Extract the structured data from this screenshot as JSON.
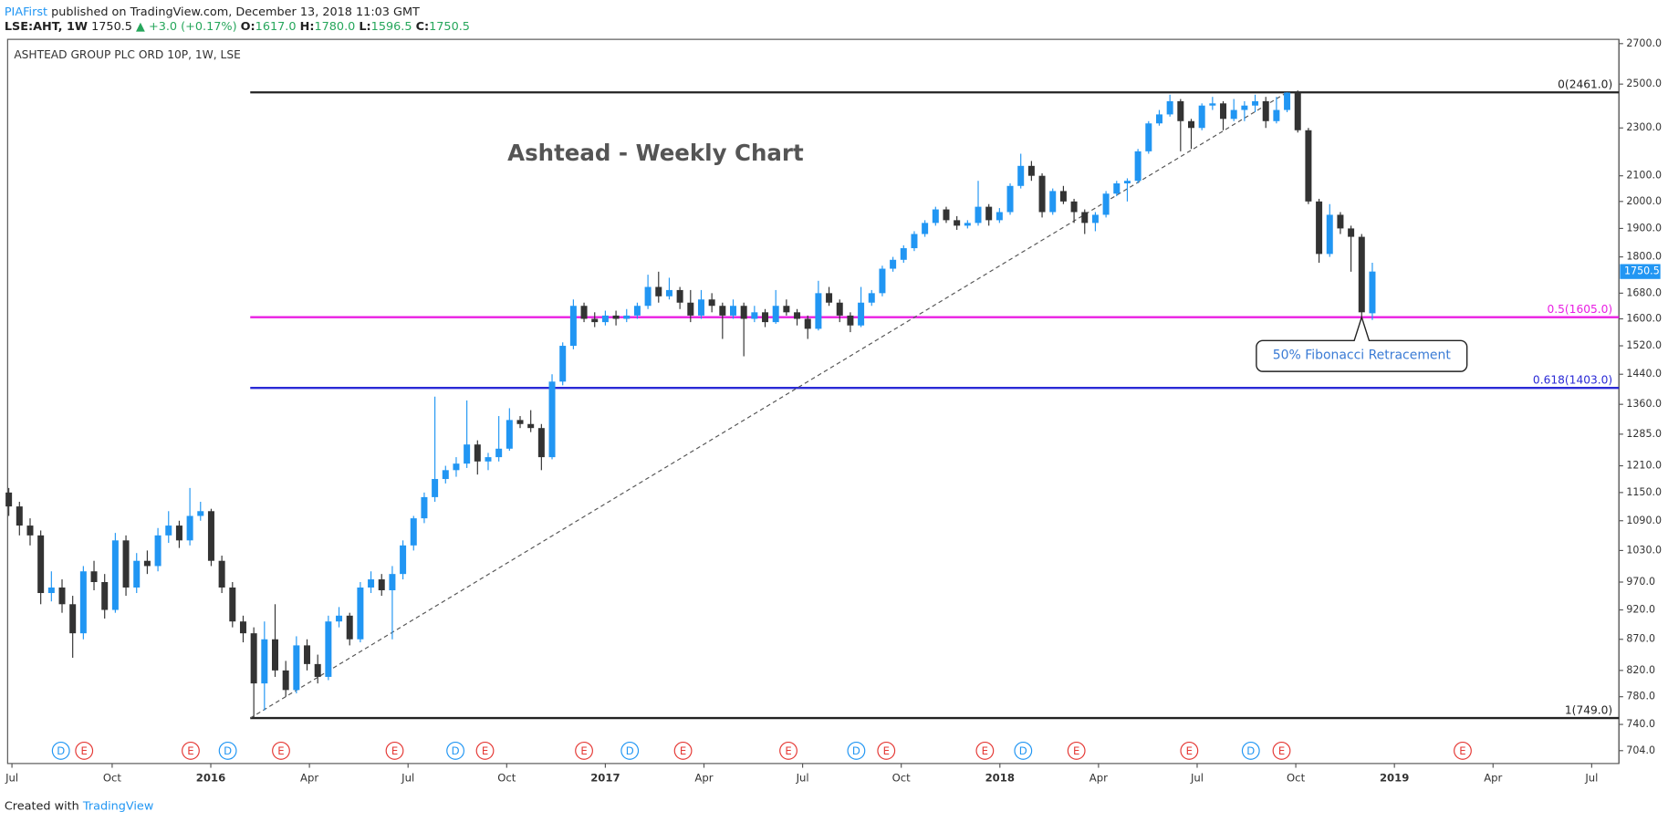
{
  "header": {
    "author": "PIAFirst",
    "text": "published on TradingView.com, December 13, 2018 11:03 GMT"
  },
  "quote": {
    "symbol": "LSE:AHT, 1W",
    "last": "1750.5",
    "change": "▲ +3.0 (+0.17%)",
    "open_label": "O:",
    "open": "1617.0",
    "high_label": "H:",
    "high": "1780.0",
    "low_label": "L:",
    "low": "1596.5",
    "close_label": "C:",
    "close": "1750.5"
  },
  "footer": {
    "text": "Created with",
    "brand": "TradingView"
  },
  "chart_data": {
    "type": "candlestick",
    "instrument": "ASHTEAD GROUP PLC ORD 10P, 1W, LSE",
    "title": "Ashtead - Weekly Chart",
    "log_scale": true,
    "up_color": "#2196f3",
    "down_color": "#333333",
    "xlim": [
      2015.485,
      2019.569
    ],
    "ylim": [
      687,
      2722
    ],
    "xticks": [
      {
        "value": 2015.496,
        "label": "Jul"
      },
      {
        "value": 2015.75,
        "label": "Oct"
      },
      2016,
      {
        "value": 2016.25,
        "label": "Apr"
      },
      {
        "value": 2016.5,
        "label": "Jul"
      },
      {
        "value": 2016.75,
        "label": "Oct"
      },
      2017,
      {
        "value": 2017.25,
        "label": "Apr"
      },
      {
        "value": 2017.5,
        "label": "Jul"
      },
      {
        "value": 2017.75,
        "label": "Oct"
      },
      2018,
      {
        "value": 2018.25,
        "label": "Apr"
      },
      {
        "value": 2018.5,
        "label": "Jul"
      },
      {
        "value": 2018.75,
        "label": "Oct"
      },
      2019,
      {
        "value": 2019.25,
        "label": "Apr"
      },
      {
        "value": 2019.5,
        "label": "Jul"
      }
    ],
    "yticks": [
      {
        "value": 2700,
        "label": "2700.0"
      },
      {
        "value": 2500,
        "label": "2500.0"
      },
      {
        "value": 2300,
        "label": "2300.0"
      },
      {
        "value": 2100,
        "label": "2100.0"
      },
      {
        "value": 2000,
        "label": "2000.0"
      },
      {
        "value": 1900,
        "label": "1900.0"
      },
      {
        "value": 1800,
        "label": "1800.0"
      },
      {
        "value": 1680,
        "label": "1680.0"
      },
      {
        "value": 1600,
        "label": "1600.0"
      },
      {
        "value": 1520,
        "label": "1520.0"
      },
      {
        "value": 1440,
        "label": "1440.0"
      },
      {
        "value": 1360,
        "label": "1360.0"
      },
      {
        "value": 1285,
        "label": "1285.0"
      },
      {
        "value": 1210,
        "label": "1210.0"
      },
      {
        "value": 1150,
        "label": "1150.0"
      },
      {
        "value": 1090,
        "label": "1090.0"
      },
      {
        "value": 1030,
        "label": "1030.0"
      },
      {
        "value": 970,
        "label": "970.0"
      },
      {
        "value": 920,
        "label": "920.0"
      },
      {
        "value": 870,
        "label": "870.0"
      },
      {
        "value": 820,
        "label": "820.0"
      },
      {
        "value": 780,
        "label": "780.0"
      },
      {
        "value": 740,
        "label": "740.0"
      },
      {
        "value": 704,
        "label": "704.0"
      }
    ],
    "x": [
      2015.488,
      2015.515,
      2015.542,
      2015.569,
      2015.596,
      2015.623,
      2015.65,
      2015.677,
      2015.704,
      2015.731,
      2015.758,
      2015.785,
      2015.812,
      2015.839,
      2015.866,
      2015.893,
      2015.92,
      2015.947,
      2015.974,
      2016.001,
      2016.028,
      2016.055,
      2016.082,
      2016.109,
      2016.136,
      2016.163,
      2016.19,
      2016.217,
      2016.244,
      2016.271,
      2016.298,
      2016.325,
      2016.352,
      2016.379,
      2016.406,
      2016.433,
      2016.46,
      2016.487,
      2016.514,
      2016.541,
      2016.568,
      2016.595,
      2016.622,
      2016.649,
      2016.676,
      2016.703,
      2016.73,
      2016.757,
      2016.784,
      2016.811,
      2016.838,
      2016.865,
      2016.892,
      2016.919,
      2016.946,
      2016.973,
      2017.0,
      2017.027,
      2017.054,
      2017.081,
      2017.108,
      2017.135,
      2017.162,
      2017.189,
      2017.216,
      2017.243,
      2017.27,
      2017.297,
      2017.324,
      2017.351,
      2017.378,
      2017.405,
      2017.432,
      2017.459,
      2017.486,
      2017.513,
      2017.54,
      2017.567,
      2017.594,
      2017.621,
      2017.648,
      2017.675,
      2017.702,
      2017.729,
      2017.756,
      2017.783,
      2017.81,
      2017.837,
      2017.864,
      2017.891,
      2017.918,
      2017.945,
      2017.972,
      2017.999,
      2018.026,
      2018.053,
      2018.08,
      2018.107,
      2018.134,
      2018.161,
      2018.188,
      2018.215,
      2018.242,
      2018.269,
      2018.296,
      2018.323,
      2018.35,
      2018.377,
      2018.404,
      2018.431,
      2018.458,
      2018.485,
      2018.512,
      2018.539,
      2018.566,
      2018.593,
      2018.62,
      2018.647,
      2018.674,
      2018.701,
      2018.728,
      2018.755,
      2018.782,
      2018.809,
      2018.836,
      2018.863,
      2018.89,
      2018.917,
      2018.944
    ],
    "ohlc": [
      [
        1150,
        1160,
        1100,
        1120
      ],
      [
        1120,
        1130,
        1060,
        1080
      ],
      [
        1080,
        1095,
        1040,
        1060
      ],
      [
        1060,
        1070,
        930,
        950
      ],
      [
        950,
        990,
        935,
        960
      ],
      [
        960,
        975,
        915,
        930
      ],
      [
        930,
        945,
        840,
        880
      ],
      [
        880,
        1000,
        870,
        990
      ],
      [
        990,
        1010,
        955,
        970
      ],
      [
        970,
        985,
        905,
        920
      ],
      [
        920,
        1065,
        915,
        1050
      ],
      [
        1050,
        1060,
        945,
        960
      ],
      [
        960,
        1025,
        950,
        1010
      ],
      [
        1010,
        1030,
        985,
        1000
      ],
      [
        1000,
        1075,
        990,
        1060
      ],
      [
        1060,
        1110,
        1045,
        1080
      ],
      [
        1080,
        1090,
        1035,
        1050
      ],
      [
        1050,
        1160,
        1040,
        1100
      ],
      [
        1100,
        1130,
        1090,
        1110
      ],
      [
        1110,
        1115,
        1000,
        1010
      ],
      [
        1010,
        1020,
        950,
        960
      ],
      [
        960,
        970,
        890,
        900
      ],
      [
        900,
        910,
        865,
        880
      ],
      [
        880,
        890,
        749,
        800
      ],
      [
        800,
        900,
        760,
        870
      ],
      [
        870,
        930,
        810,
        820
      ],
      [
        820,
        835,
        780,
        790
      ],
      [
        790,
        875,
        785,
        860
      ],
      [
        860,
        870,
        820,
        830
      ],
      [
        830,
        845,
        800,
        810
      ],
      [
        810,
        910,
        805,
        900
      ],
      [
        900,
        925,
        890,
        910
      ],
      [
        910,
        915,
        860,
        870
      ],
      [
        870,
        970,
        865,
        960
      ],
      [
        960,
        990,
        950,
        975
      ],
      [
        975,
        985,
        945,
        955
      ],
      [
        955,
        1000,
        870,
        985
      ],
      [
        985,
        1050,
        975,
        1040
      ],
      [
        1040,
        1100,
        1030,
        1095
      ],
      [
        1095,
        1150,
        1085,
        1140
      ],
      [
        1140,
        1380,
        1130,
        1180
      ],
      [
        1180,
        1210,
        1170,
        1200
      ],
      [
        1200,
        1230,
        1185,
        1215
      ],
      [
        1215,
        1370,
        1205,
        1260
      ],
      [
        1260,
        1270,
        1190,
        1220
      ],
      [
        1220,
        1240,
        1200,
        1230
      ],
      [
        1230,
        1330,
        1220,
        1250
      ],
      [
        1250,
        1350,
        1245,
        1320
      ],
      [
        1320,
        1330,
        1300,
        1310
      ],
      [
        1310,
        1345,
        1290,
        1300
      ],
      [
        1300,
        1310,
        1200,
        1230
      ],
      [
        1230,
        1440,
        1225,
        1420
      ],
      [
        1420,
        1530,
        1410,
        1520
      ],
      [
        1520,
        1660,
        1510,
        1640
      ],
      [
        1640,
        1650,
        1590,
        1600
      ],
      [
        1600,
        1620,
        1575,
        1590
      ],
      [
        1590,
        1625,
        1580,
        1610
      ],
      [
        1610,
        1625,
        1580,
        1600
      ],
      [
        1600,
        1630,
        1590,
        1610
      ],
      [
        1610,
        1650,
        1600,
        1640
      ],
      [
        1640,
        1740,
        1630,
        1700
      ],
      [
        1700,
        1750,
        1650,
        1670
      ],
      [
        1670,
        1730,
        1660,
        1690
      ],
      [
        1690,
        1700,
        1630,
        1650
      ],
      [
        1650,
        1690,
        1590,
        1610
      ],
      [
        1610,
        1690,
        1600,
        1660
      ],
      [
        1660,
        1680,
        1620,
        1640
      ],
      [
        1640,
        1650,
        1540,
        1610
      ],
      [
        1610,
        1660,
        1600,
        1640
      ],
      [
        1640,
        1650,
        1490,
        1600
      ],
      [
        1600,
        1640,
        1590,
        1620
      ],
      [
        1620,
        1630,
        1575,
        1590
      ],
      [
        1590,
        1690,
        1585,
        1640
      ],
      [
        1640,
        1660,
        1610,
        1620
      ],
      [
        1620,
        1630,
        1580,
        1600
      ],
      [
        1600,
        1610,
        1540,
        1570
      ],
      [
        1570,
        1720,
        1565,
        1680
      ],
      [
        1680,
        1700,
        1640,
        1650
      ],
      [
        1650,
        1660,
        1590,
        1610
      ],
      [
        1610,
        1620,
        1560,
        1580
      ],
      [
        1580,
        1700,
        1575,
        1650
      ],
      [
        1650,
        1690,
        1640,
        1680
      ],
      [
        1680,
        1770,
        1670,
        1760
      ],
      [
        1760,
        1800,
        1750,
        1790
      ],
      [
        1790,
        1840,
        1780,
        1830
      ],
      [
        1830,
        1890,
        1820,
        1880
      ],
      [
        1880,
        1930,
        1870,
        1920
      ],
      [
        1920,
        1980,
        1910,
        1970
      ],
      [
        1970,
        1980,
        1920,
        1930
      ],
      [
        1930,
        1945,
        1895,
        1910
      ],
      [
        1910,
        1930,
        1900,
        1920
      ],
      [
        1920,
        2080,
        1910,
        1980
      ],
      [
        1980,
        1990,
        1910,
        1930
      ],
      [
        1930,
        1975,
        1920,
        1960
      ],
      [
        1960,
        2070,
        1950,
        2060
      ],
      [
        2060,
        2190,
        2050,
        2140
      ],
      [
        2140,
        2160,
        2080,
        2100
      ],
      [
        2100,
        2110,
        1940,
        1960
      ],
      [
        1960,
        2050,
        1950,
        2040
      ],
      [
        2040,
        2060,
        1990,
        2000
      ],
      [
        2000,
        2010,
        1920,
        1960
      ],
      [
        1960,
        1970,
        1880,
        1920
      ],
      [
        1920,
        1960,
        1890,
        1950
      ],
      [
        1950,
        2040,
        1940,
        2030
      ],
      [
        2030,
        2080,
        2020,
        2070
      ],
      [
        2070,
        2090,
        2000,
        2080
      ],
      [
        2080,
        2210,
        2070,
        2200
      ],
      [
        2200,
        2330,
        2190,
        2320
      ],
      [
        2320,
        2380,
        2310,
        2360
      ],
      [
        2360,
        2450,
        2350,
        2420
      ],
      [
        2420,
        2430,
        2200,
        2330
      ],
      [
        2330,
        2340,
        2210,
        2300
      ],
      [
        2300,
        2410,
        2290,
        2400
      ],
      [
        2400,
        2440,
        2380,
        2410
      ],
      [
        2410,
        2420,
        2290,
        2340
      ],
      [
        2340,
        2430,
        2330,
        2380
      ],
      [
        2380,
        2420,
        2330,
        2400
      ],
      [
        2400,
        2450,
        2370,
        2420
      ],
      [
        2420,
        2440,
        2300,
        2330
      ],
      [
        2330,
        2440,
        2320,
        2380
      ],
      [
        2380,
        2461,
        2370,
        2460
      ],
      [
        2460,
        2470,
        2280,
        2290
      ],
      [
        2290,
        2300,
        1990,
        2000
      ],
      [
        2000,
        2010,
        1780,
        1810
      ],
      [
        1810,
        1990,
        1800,
        1950
      ],
      [
        1950,
        1960,
        1880,
        1900
      ],
      [
        1900,
        1910,
        1750,
        1870
      ],
      [
        1870,
        1880,
        1605,
        1620
      ],
      [
        1617,
        1780,
        1596.5,
        1750.5
      ]
    ],
    "last_price": {
      "value": 1750.5,
      "label": "1750.5"
    },
    "fib_start": 2016.1,
    "fib_levels": [
      {
        "label": "0(2461.0)",
        "value": 2461,
        "color": "#222222"
      },
      {
        "label": "0.5(1605.0)",
        "value": 1605,
        "color": "#e91ee3"
      },
      {
        "label": "0.618(1403.0)",
        "value": 1403,
        "color": "#2a2ad6"
      },
      {
        "label": "1(749.0)",
        "value": 749,
        "color": "#222222"
      }
    ],
    "trendline": {
      "x": [
        2016.1,
        2018.728
      ],
      "y": [
        749,
        2461
      ]
    },
    "annotation": "50% Fibonacci Retracement",
    "events": [
      {
        "x": 2015.62,
        "label": "D"
      },
      {
        "x": 2015.679,
        "label": "E"
      },
      {
        "x": 2015.949,
        "label": "E"
      },
      {
        "x": 2016.043,
        "label": "D"
      },
      {
        "x": 2016.178,
        "label": "E"
      },
      {
        "x": 2016.466,
        "label": "E"
      },
      {
        "x": 2016.62,
        "label": "D"
      },
      {
        "x": 2016.695,
        "label": "E"
      },
      {
        "x": 2016.946,
        "label": "E"
      },
      {
        "x": 2017.062,
        "label": "D"
      },
      {
        "x": 2017.197,
        "label": "E"
      },
      {
        "x": 2017.464,
        "label": "E"
      },
      {
        "x": 2017.636,
        "label": "D"
      },
      {
        "x": 2017.712,
        "label": "E"
      },
      {
        "x": 2017.962,
        "label": "E"
      },
      {
        "x": 2018.059,
        "label": "D"
      },
      {
        "x": 2018.194,
        "label": "E"
      },
      {
        "x": 2018.48,
        "label": "E"
      },
      {
        "x": 2018.636,
        "label": "D"
      },
      {
        "x": 2018.714,
        "label": "E"
      },
      {
        "x": 2019.173,
        "label": "E"
      }
    ],
    "event_colors": {
      "D": "#2196f3",
      "E": "#e53935"
    }
  }
}
